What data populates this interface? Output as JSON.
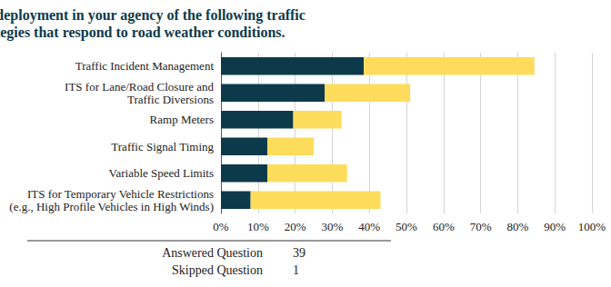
{
  "chart_data": {
    "type": "bar",
    "title": "Describe the level of deployment in your agency of the following traffic\nmanagement strategies that respond to road weather conditions.",
    "orientation": "horizontal",
    "stacked": true,
    "grid": true,
    "categories": [
      "Traffic Incident Management",
      "ITS for Lane/Road Closure and\nTraffic Diversions",
      "Ramp Meters",
      "Traffic Signal Timing",
      "Variable Speed Limits",
      "ITS for Temporary Vehicle Restrictions\n(e.g., High Profile Vehicles in High Winds)"
    ],
    "series": [
      {
        "color": "#0d3a4a",
        "values": [
          38.5,
          28,
          19.5,
          12.5,
          12.5,
          8
        ]
      },
      {
        "color": "#fddc5c",
        "values": [
          46,
          23,
          13,
          12.5,
          21.5,
          35
        ]
      }
    ],
    "xlim": [
      0,
      100
    ],
    "xticks": [
      {
        "value": 0,
        "label": "0%"
      },
      {
        "value": 10,
        "label": "10%"
      },
      {
        "value": 20,
        "label": "20%"
      },
      {
        "value": 30,
        "label": "30%"
      },
      {
        "value": 40,
        "label": "40%"
      },
      {
        "value": 50,
        "label": "50%"
      },
      {
        "value": 60,
        "label": "60%"
      },
      {
        "value": 70,
        "label": "70%"
      },
      {
        "value": 80,
        "label": "80%"
      },
      {
        "value": 90,
        "label": "90%"
      },
      {
        "value": 100,
        "label": "100%"
      }
    ],
    "annotations": [
      {
        "label": "Answered Question",
        "value": 39
      },
      {
        "label": "Skipped Question",
        "value": 1
      }
    ]
  }
}
